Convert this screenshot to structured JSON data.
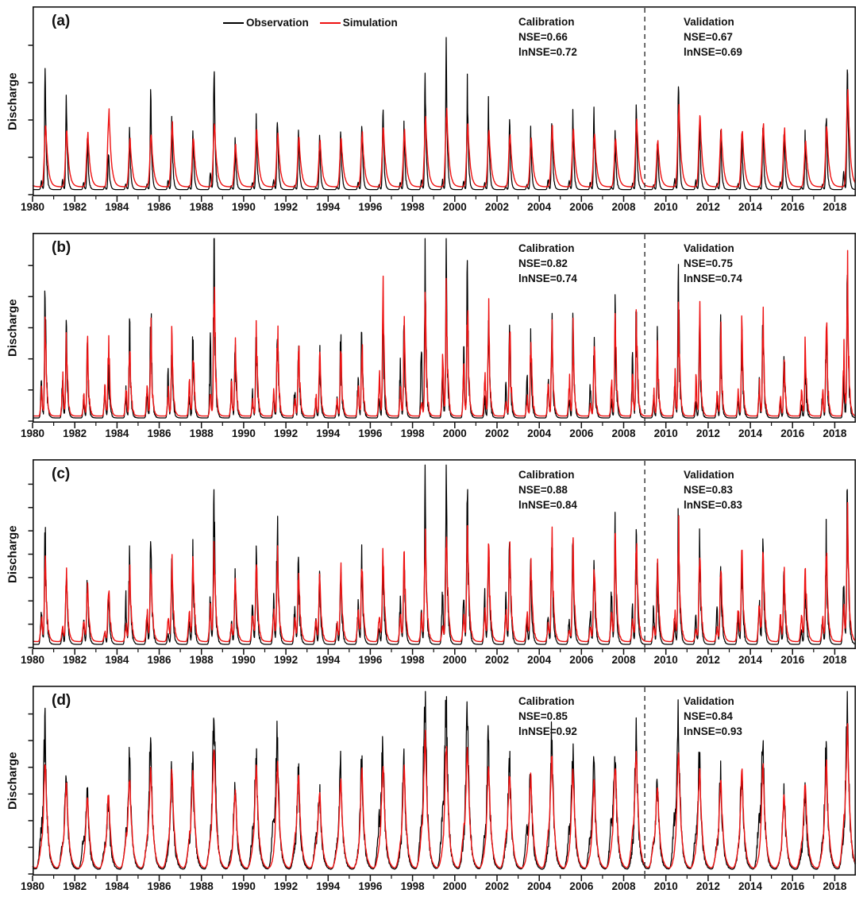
{
  "legend": {
    "items": [
      {
        "label": "Observation",
        "color": "#000000"
      },
      {
        "label": "Simulation",
        "color": "#ee1111"
      }
    ]
  },
  "x_axis": {
    "tick_years": [
      1980,
      1982,
      1984,
      1986,
      1988,
      1990,
      1992,
      1994,
      1996,
      1998,
      2000,
      2002,
      2004,
      2006,
      2008,
      2010,
      2012,
      2014,
      2016,
      2018
    ],
    "start_year": 1980,
    "end_year": 2019,
    "minor_tick_every_year": true
  },
  "chart_data": [
    {
      "type": "line",
      "panel_label": "(a)",
      "ylabel": "Discharge",
      "show_legend": true,
      "split_line_year": 2009,
      "y_ticks_unlabeled": 5,
      "stats": {
        "calibration": {
          "title": "Calibration",
          "lines": [
            "NSE=0.66",
            "lnNSE=0.72"
          ]
        },
        "validation": {
          "title": "Validation",
          "lines": [
            "NSE=0.67",
            "lnNSE=0.69"
          ]
        }
      },
      "series": [
        {
          "name": "Observation",
          "color": "#000000",
          "annual_peak_heights": [
            0.62,
            0.52,
            0.28,
            0.22,
            0.3,
            0.5,
            0.36,
            0.33,
            0.68,
            0.25,
            0.38,
            0.42,
            0.32,
            0.26,
            0.33,
            0.38,
            0.46,
            0.33,
            0.6,
            0.75,
            0.55,
            0.45,
            0.35,
            0.3,
            0.42,
            0.38,
            0.42,
            0.3,
            0.45,
            0.28,
            0.55,
            0.4,
            0.32,
            0.28,
            0.35,
            0.32,
            0.28,
            0.4,
            0.72
          ],
          "shape": {
            "rise": 0.028,
            "fall": 0.05,
            "base": 0.035,
            "spike": 0.3,
            "shift": 0.0,
            "second": 0.15,
            "seed": 101
          }
        },
        {
          "name": "Simulation",
          "color": "#ee1111",
          "annual_peak_heights": [
            0.33,
            0.3,
            0.28,
            0.4,
            0.25,
            0.28,
            0.33,
            0.26,
            0.33,
            0.22,
            0.3,
            0.28,
            0.26,
            0.24,
            0.26,
            0.28,
            0.31,
            0.29,
            0.36,
            0.4,
            0.33,
            0.3,
            0.28,
            0.26,
            0.31,
            0.3,
            0.28,
            0.26,
            0.36,
            0.24,
            0.42,
            0.38,
            0.3,
            0.3,
            0.33,
            0.3,
            0.24,
            0.32,
            0.52
          ],
          "shape": {
            "rise": 0.062,
            "fall": 0.105,
            "base": 0.05,
            "spike": 0.08,
            "shift": 0.025,
            "second": 0.0,
            "seed": 202
          }
        }
      ]
    },
    {
      "type": "line",
      "panel_label": "(b)",
      "ylabel": "Discharge",
      "show_legend": false,
      "split_line_year": 2009,
      "y_ticks_unlabeled": 6,
      "stats": {
        "calibration": {
          "title": "Calibration",
          "lines": [
            "NSE=0.82",
            "lnNSE=0.74"
          ]
        },
        "validation": {
          "title": "Validation",
          "lines": [
            "NSE=0.75",
            "lnNSE=0.74"
          ]
        }
      },
      "series": [
        {
          "name": "Observation",
          "color": "#000000",
          "annual_peak_heights": [
            0.68,
            0.45,
            0.35,
            0.3,
            0.45,
            0.65,
            0.4,
            0.42,
            0.95,
            0.4,
            0.5,
            0.55,
            0.45,
            0.35,
            0.4,
            0.45,
            0.55,
            0.5,
            0.8,
            0.85,
            0.75,
            0.55,
            0.48,
            0.4,
            0.58,
            0.5,
            0.42,
            0.55,
            0.6,
            0.4,
            0.7,
            0.5,
            0.42,
            0.45,
            0.55,
            0.35,
            0.3,
            0.55,
            0.85
          ],
          "shape": {
            "rise": 0.03,
            "fall": 0.055,
            "base": 0.025,
            "spike": 0.6,
            "shift": 0.0,
            "second": 0.55,
            "seed": 303
          }
        },
        {
          "name": "Simulation",
          "color": "#ee1111",
          "annual_peak_heights": [
            0.5,
            0.4,
            0.35,
            0.4,
            0.4,
            0.45,
            0.42,
            0.4,
            0.8,
            0.38,
            0.45,
            0.48,
            0.4,
            0.35,
            0.35,
            0.4,
            0.58,
            0.48,
            0.6,
            0.65,
            0.6,
            0.5,
            0.45,
            0.42,
            0.52,
            0.45,
            0.35,
            0.5,
            0.55,
            0.35,
            0.55,
            0.48,
            0.4,
            0.48,
            0.5,
            0.3,
            0.38,
            0.5,
            0.7
          ],
          "shape": {
            "rise": 0.034,
            "fall": 0.06,
            "base": 0.035,
            "spike": 0.5,
            "shift": 0.01,
            "second": 0.5,
            "seed": 404
          }
        }
      ]
    },
    {
      "type": "line",
      "panel_label": "(c)",
      "ylabel": "Discharge",
      "show_legend": false,
      "split_line_year": 2009,
      "y_ticks_unlabeled": 8,
      "stats": {
        "calibration": {
          "title": "Calibration",
          "lines": [
            "NSE=0.88",
            "lnNSE=0.84"
          ]
        },
        "validation": {
          "title": "Validation",
          "lines": [
            "NSE=0.83",
            "lnNSE=0.83"
          ]
        }
      },
      "series": [
        {
          "name": "Observation",
          "color": "#000000",
          "annual_peak_heights": [
            0.6,
            0.42,
            0.35,
            0.28,
            0.48,
            0.62,
            0.42,
            0.45,
            0.82,
            0.35,
            0.48,
            0.65,
            0.42,
            0.35,
            0.42,
            0.45,
            0.52,
            0.48,
            0.8,
            0.85,
            0.78,
            0.6,
            0.58,
            0.42,
            0.62,
            0.55,
            0.48,
            0.58,
            0.62,
            0.42,
            0.72,
            0.52,
            0.42,
            0.45,
            0.6,
            0.38,
            0.35,
            0.55,
            0.82
          ],
          "shape": {
            "rise": 0.034,
            "fall": 0.06,
            "base": 0.025,
            "spike": 0.45,
            "shift": 0.0,
            "second": 0.5,
            "seed": 505
          }
        },
        {
          "name": "Simulation",
          "color": "#ee1111",
          "annual_peak_heights": [
            0.42,
            0.35,
            0.3,
            0.3,
            0.38,
            0.42,
            0.4,
            0.42,
            0.5,
            0.33,
            0.42,
            0.45,
            0.38,
            0.33,
            0.36,
            0.4,
            0.46,
            0.44,
            0.55,
            0.6,
            0.58,
            0.5,
            0.48,
            0.44,
            0.52,
            0.48,
            0.4,
            0.52,
            0.55,
            0.38,
            0.58,
            0.48,
            0.4,
            0.46,
            0.52,
            0.34,
            0.4,
            0.5,
            0.65
          ],
          "shape": {
            "rise": 0.042,
            "fall": 0.075,
            "base": 0.04,
            "spike": 0.3,
            "shift": 0.01,
            "second": 0.45,
            "seed": 606
          }
        }
      ]
    },
    {
      "type": "line",
      "panel_label": "(d)",
      "ylabel": "Discharge",
      "show_legend": false,
      "split_line_year": 2009,
      "y_ticks_unlabeled": 7,
      "stats": {
        "calibration": {
          "title": "Calibration",
          "lines": [
            "NSE=0.85",
            "lnNSE=0.92"
          ]
        },
        "validation": {
          "title": "Validation",
          "lines": [
            "NSE=0.84",
            "lnNSE=0.93"
          ]
        }
      },
      "series": [
        {
          "name": "Observation",
          "color": "#000000",
          "annual_peak_heights": [
            0.72,
            0.5,
            0.4,
            0.35,
            0.55,
            0.68,
            0.52,
            0.55,
            0.88,
            0.45,
            0.58,
            0.68,
            0.52,
            0.42,
            0.52,
            0.55,
            0.62,
            0.58,
            0.92,
            0.88,
            0.85,
            0.65,
            0.58,
            0.48,
            0.68,
            0.6,
            0.52,
            0.62,
            0.68,
            0.48,
            0.78,
            0.58,
            0.48,
            0.52,
            0.65,
            0.42,
            0.4,
            0.6,
            0.9
          ],
          "shape": {
            "rise": 0.075,
            "fall": 0.105,
            "base": 0.03,
            "spike": 0.35,
            "shift": 0.0,
            "second": 0.4,
            "seed": 707
          }
        },
        {
          "name": "Simulation",
          "color": "#ee1111",
          "annual_peak_heights": [
            0.55,
            0.45,
            0.38,
            0.38,
            0.48,
            0.52,
            0.5,
            0.5,
            0.62,
            0.42,
            0.52,
            0.55,
            0.48,
            0.4,
            0.46,
            0.5,
            0.55,
            0.52,
            0.68,
            0.65,
            0.62,
            0.55,
            0.5,
            0.48,
            0.58,
            0.52,
            0.45,
            0.55,
            0.6,
            0.44,
            0.62,
            0.52,
            0.45,
            0.5,
            0.55,
            0.38,
            0.44,
            0.55,
            0.72
          ],
          "shape": {
            "rise": 0.08,
            "fall": 0.115,
            "base": 0.035,
            "spike": 0.12,
            "shift": 0.01,
            "second": 0.3,
            "seed": 808
          }
        }
      ]
    }
  ]
}
